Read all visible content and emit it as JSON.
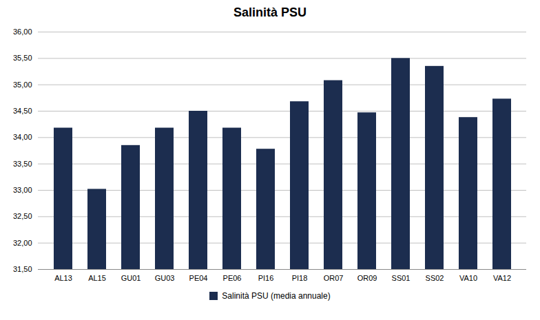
{
  "chart_data": {
    "type": "bar",
    "title": "Salinità PSU",
    "categories": [
      "AL13",
      "AL15",
      "GU01",
      "GU03",
      "PE04",
      "PE06",
      "PI16",
      "PI18",
      "OR07",
      "OR09",
      "SS01",
      "SS02",
      "VA10",
      "VA12"
    ],
    "series": [
      {
        "name": "Salinità PSU (media annuale)",
        "color": "#1c2d4f",
        "values": [
          34.18,
          33.02,
          33.85,
          34.18,
          34.5,
          34.18,
          33.78,
          34.68,
          35.08,
          34.47,
          35.5,
          35.35,
          34.38,
          34.73
        ]
      }
    ],
    "ylim": [
      31.5,
      36.0
    ],
    "yticks": [
      {
        "value": 31.5,
        "label": "31,50"
      },
      {
        "value": 32.0,
        "label": "32,00"
      },
      {
        "value": 32.5,
        "label": "32,50"
      },
      {
        "value": 33.0,
        "label": "33,00"
      },
      {
        "value": 33.5,
        "label": "33,50"
      },
      {
        "value": 34.0,
        "label": "34,00"
      },
      {
        "value": 34.5,
        "label": "34,50"
      },
      {
        "value": 35.0,
        "label": "35,00"
      },
      {
        "value": 35.5,
        "label": "35,50"
      },
      {
        "value": 36.0,
        "label": "36,00"
      }
    ],
    "grid": true,
    "legend": "bottom"
  }
}
